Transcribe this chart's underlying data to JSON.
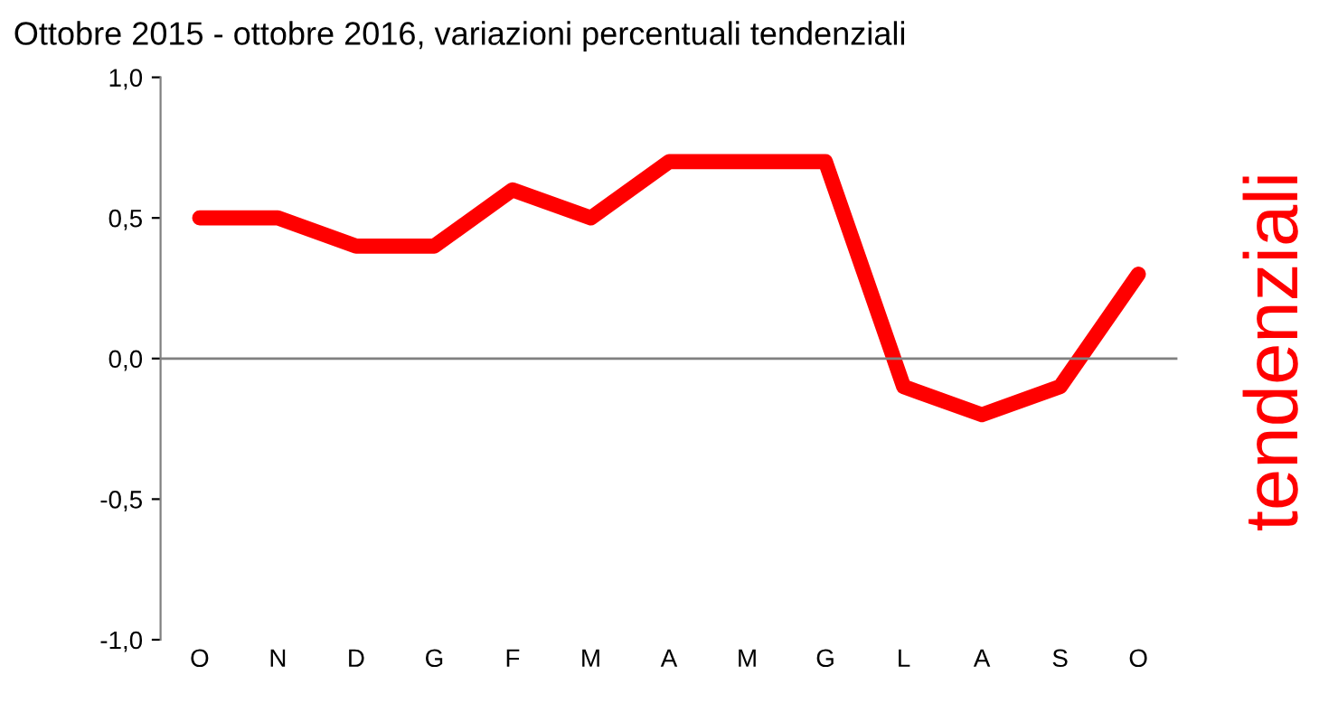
{
  "chart_data": {
    "type": "line",
    "title": "Ottobre 2015 - ottobre 2016, variazioni percentuali tendenziali",
    "categories": [
      "O",
      "N",
      "D",
      "G",
      "F",
      "M",
      "A",
      "M",
      "G",
      "L",
      "A",
      "S",
      "O"
    ],
    "series": [
      {
        "color": "#ff0000",
        "values": [
          0.5,
          0.5,
          0.4,
          0.4,
          0.6,
          0.5,
          0.7,
          0.7,
          0.7,
          -0.1,
          -0.2,
          -0.1,
          0.3
        ]
      }
    ],
    "ylim": [
      -1.0,
      1.0
    ],
    "yticks": [
      {
        "value": -1.0,
        "label": "-1,0"
      },
      {
        "value": -0.5,
        "label": "-0,5"
      },
      {
        "value": 0.0,
        "label": "0,0"
      },
      {
        "value": 0.5,
        "label": "0,5"
      },
      {
        "value": 1.0,
        "label": "1,0"
      }
    ],
    "ref_lines": [
      {
        "axis": "y",
        "value": 0,
        "label": null,
        "color": "#808080"
      }
    ],
    "annotations": [
      "tendenziali"
    ],
    "grid": false,
    "legend": false,
    "marker": "none",
    "line_style": "solid"
  }
}
